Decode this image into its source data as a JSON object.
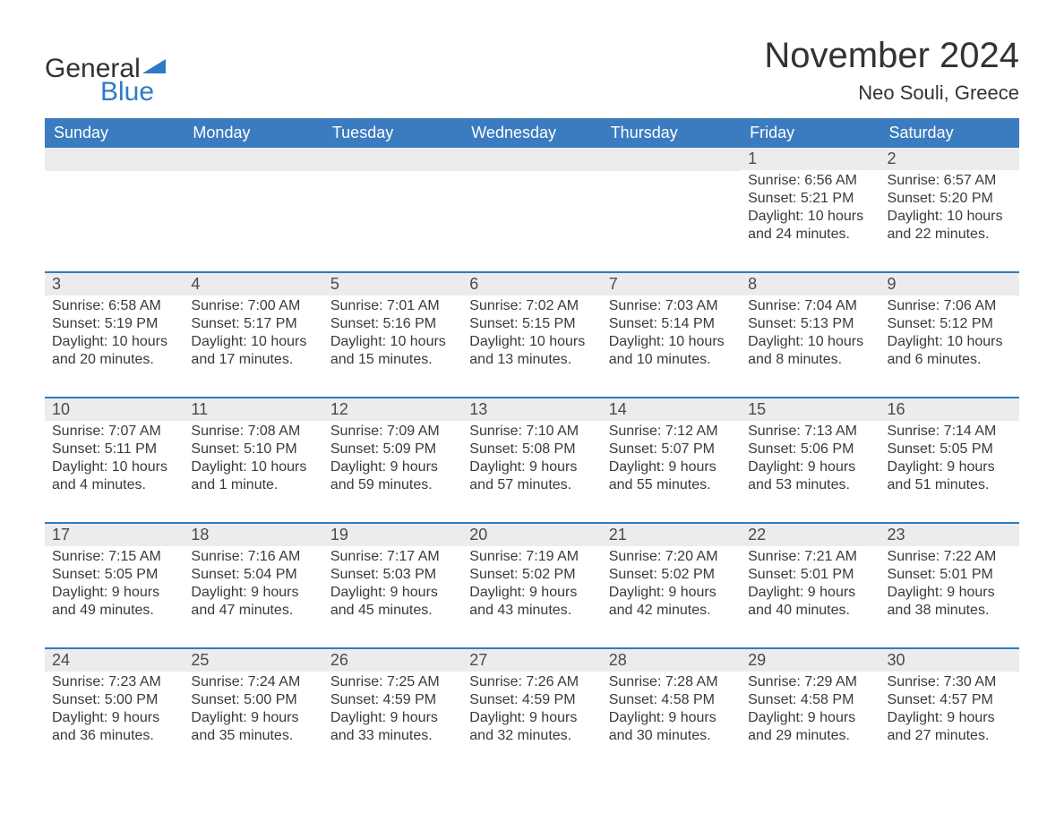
{
  "logo": {
    "word1": "General",
    "word2": "Blue",
    "word1_color": "#323232",
    "word2_color": "#2d7bc8",
    "triangle_color": "#2d7bc8"
  },
  "title": "November 2024",
  "location": "Neo Souli, Greece",
  "colors": {
    "header_bg": "#3b7bbf",
    "header_text": "#ffffff",
    "daynum_bg": "#ececec",
    "week_divider": "#2d7bc8",
    "body_text": "#3a3a3a",
    "background": "#ffffff"
  },
  "fonts": {
    "title_size_pt": 30,
    "location_size_pt": 17,
    "dayheader_size_pt": 14,
    "daynum_size_pt": 14,
    "body_size_pt": 12
  },
  "day_headers": [
    "Sunday",
    "Monday",
    "Tuesday",
    "Wednesday",
    "Thursday",
    "Friday",
    "Saturday"
  ],
  "weeks": [
    [
      {
        "empty": true
      },
      {
        "empty": true
      },
      {
        "empty": true
      },
      {
        "empty": true
      },
      {
        "empty": true
      },
      {
        "num": "1",
        "sunrise": "Sunrise: 6:56 AM",
        "sunset": "Sunset: 5:21 PM",
        "daylight1": "Daylight: 10 hours",
        "daylight2": "and 24 minutes."
      },
      {
        "num": "2",
        "sunrise": "Sunrise: 6:57 AM",
        "sunset": "Sunset: 5:20 PM",
        "daylight1": "Daylight: 10 hours",
        "daylight2": "and 22 minutes."
      }
    ],
    [
      {
        "num": "3",
        "sunrise": "Sunrise: 6:58 AM",
        "sunset": "Sunset: 5:19 PM",
        "daylight1": "Daylight: 10 hours",
        "daylight2": "and 20 minutes."
      },
      {
        "num": "4",
        "sunrise": "Sunrise: 7:00 AM",
        "sunset": "Sunset: 5:17 PM",
        "daylight1": "Daylight: 10 hours",
        "daylight2": "and 17 minutes."
      },
      {
        "num": "5",
        "sunrise": "Sunrise: 7:01 AM",
        "sunset": "Sunset: 5:16 PM",
        "daylight1": "Daylight: 10 hours",
        "daylight2": "and 15 minutes."
      },
      {
        "num": "6",
        "sunrise": "Sunrise: 7:02 AM",
        "sunset": "Sunset: 5:15 PM",
        "daylight1": "Daylight: 10 hours",
        "daylight2": "and 13 minutes."
      },
      {
        "num": "7",
        "sunrise": "Sunrise: 7:03 AM",
        "sunset": "Sunset: 5:14 PM",
        "daylight1": "Daylight: 10 hours",
        "daylight2": "and 10 minutes."
      },
      {
        "num": "8",
        "sunrise": "Sunrise: 7:04 AM",
        "sunset": "Sunset: 5:13 PM",
        "daylight1": "Daylight: 10 hours",
        "daylight2": "and 8 minutes."
      },
      {
        "num": "9",
        "sunrise": "Sunrise: 7:06 AM",
        "sunset": "Sunset: 5:12 PM",
        "daylight1": "Daylight: 10 hours",
        "daylight2": "and 6 minutes."
      }
    ],
    [
      {
        "num": "10",
        "sunrise": "Sunrise: 7:07 AM",
        "sunset": "Sunset: 5:11 PM",
        "daylight1": "Daylight: 10 hours",
        "daylight2": "and 4 minutes."
      },
      {
        "num": "11",
        "sunrise": "Sunrise: 7:08 AM",
        "sunset": "Sunset: 5:10 PM",
        "daylight1": "Daylight: 10 hours",
        "daylight2": "and 1 minute."
      },
      {
        "num": "12",
        "sunrise": "Sunrise: 7:09 AM",
        "sunset": "Sunset: 5:09 PM",
        "daylight1": "Daylight: 9 hours",
        "daylight2": "and 59 minutes."
      },
      {
        "num": "13",
        "sunrise": "Sunrise: 7:10 AM",
        "sunset": "Sunset: 5:08 PM",
        "daylight1": "Daylight: 9 hours",
        "daylight2": "and 57 minutes."
      },
      {
        "num": "14",
        "sunrise": "Sunrise: 7:12 AM",
        "sunset": "Sunset: 5:07 PM",
        "daylight1": "Daylight: 9 hours",
        "daylight2": "and 55 minutes."
      },
      {
        "num": "15",
        "sunrise": "Sunrise: 7:13 AM",
        "sunset": "Sunset: 5:06 PM",
        "daylight1": "Daylight: 9 hours",
        "daylight2": "and 53 minutes."
      },
      {
        "num": "16",
        "sunrise": "Sunrise: 7:14 AM",
        "sunset": "Sunset: 5:05 PM",
        "daylight1": "Daylight: 9 hours",
        "daylight2": "and 51 minutes."
      }
    ],
    [
      {
        "num": "17",
        "sunrise": "Sunrise: 7:15 AM",
        "sunset": "Sunset: 5:05 PM",
        "daylight1": "Daylight: 9 hours",
        "daylight2": "and 49 minutes."
      },
      {
        "num": "18",
        "sunrise": "Sunrise: 7:16 AM",
        "sunset": "Sunset: 5:04 PM",
        "daylight1": "Daylight: 9 hours",
        "daylight2": "and 47 minutes."
      },
      {
        "num": "19",
        "sunrise": "Sunrise: 7:17 AM",
        "sunset": "Sunset: 5:03 PM",
        "daylight1": "Daylight: 9 hours",
        "daylight2": "and 45 minutes."
      },
      {
        "num": "20",
        "sunrise": "Sunrise: 7:19 AM",
        "sunset": "Sunset: 5:02 PM",
        "daylight1": "Daylight: 9 hours",
        "daylight2": "and 43 minutes."
      },
      {
        "num": "21",
        "sunrise": "Sunrise: 7:20 AM",
        "sunset": "Sunset: 5:02 PM",
        "daylight1": "Daylight: 9 hours",
        "daylight2": "and 42 minutes."
      },
      {
        "num": "22",
        "sunrise": "Sunrise: 7:21 AM",
        "sunset": "Sunset: 5:01 PM",
        "daylight1": "Daylight: 9 hours",
        "daylight2": "and 40 minutes."
      },
      {
        "num": "23",
        "sunrise": "Sunrise: 7:22 AM",
        "sunset": "Sunset: 5:01 PM",
        "daylight1": "Daylight: 9 hours",
        "daylight2": "and 38 minutes."
      }
    ],
    [
      {
        "num": "24",
        "sunrise": "Sunrise: 7:23 AM",
        "sunset": "Sunset: 5:00 PM",
        "daylight1": "Daylight: 9 hours",
        "daylight2": "and 36 minutes."
      },
      {
        "num": "25",
        "sunrise": "Sunrise: 7:24 AM",
        "sunset": "Sunset: 5:00 PM",
        "daylight1": "Daylight: 9 hours",
        "daylight2": "and 35 minutes."
      },
      {
        "num": "26",
        "sunrise": "Sunrise: 7:25 AM",
        "sunset": "Sunset: 4:59 PM",
        "daylight1": "Daylight: 9 hours",
        "daylight2": "and 33 minutes."
      },
      {
        "num": "27",
        "sunrise": "Sunrise: 7:26 AM",
        "sunset": "Sunset: 4:59 PM",
        "daylight1": "Daylight: 9 hours",
        "daylight2": "and 32 minutes."
      },
      {
        "num": "28",
        "sunrise": "Sunrise: 7:28 AM",
        "sunset": "Sunset: 4:58 PM",
        "daylight1": "Daylight: 9 hours",
        "daylight2": "and 30 minutes."
      },
      {
        "num": "29",
        "sunrise": "Sunrise: 7:29 AM",
        "sunset": "Sunset: 4:58 PM",
        "daylight1": "Daylight: 9 hours",
        "daylight2": "and 29 minutes."
      },
      {
        "num": "30",
        "sunrise": "Sunrise: 7:30 AM",
        "sunset": "Sunset: 4:57 PM",
        "daylight1": "Daylight: 9 hours",
        "daylight2": "and 27 minutes."
      }
    ]
  ]
}
